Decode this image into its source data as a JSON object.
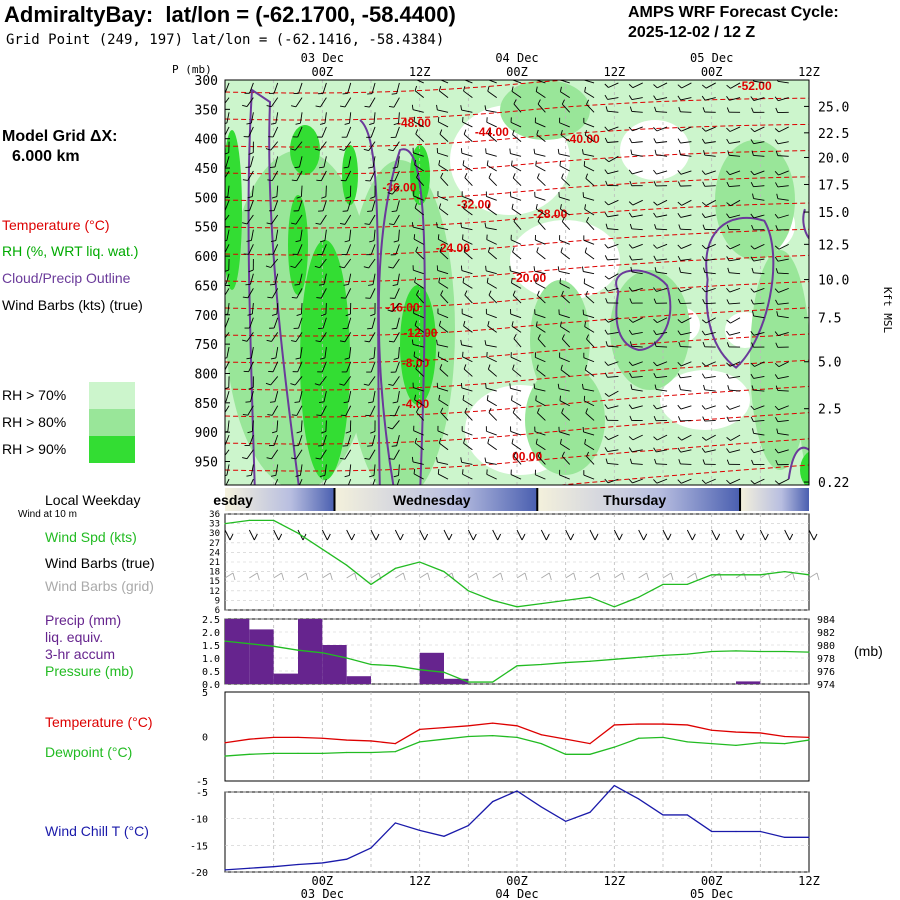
{
  "header": {
    "station": "AdmiraltyBay:",
    "latlon_label": "lat/lon = (-62.1700, -58.4400)",
    "grid_point": "Grid Point (249, 197) lat/lon = (-62.1416, -58.4384)",
    "cycle_title": "AMPS WRF Forecast Cycle:",
    "cycle_value": "2025-12-02 / 12  Z"
  },
  "sidebar": {
    "model_grid_label": "Model Grid ΔX:",
    "model_grid_value": "6.000 km",
    "legend_temperature": "Temperature (°C)",
    "legend_rh": "RH (%, WRT liq. wat.)",
    "legend_cloud": "Cloud/Precip Outline",
    "legend_wind": "Wind Barbs (kts) (true)",
    "rh70": "RH > 70%",
    "rh80": "RH > 80%",
    "rh90": "RH > 90%",
    "local_weekday": "Local Weekday",
    "wind_10m": "Wind at 10 m",
    "wind_spd": "Wind Spd (kts)",
    "wind_barbs_true": "Wind Barbs (true)",
    "wind_barbs_grid": "Wind Barbs (grid)",
    "precip_line1": "Precip (mm)",
    "precip_line2": "liq. equiv.",
    "precip_line3": "3-hr accum",
    "pressure_label": "Pressure (mb)",
    "temperature_label": "Temperature (°C)",
    "dewpoint_label": "Dewpoint (°C)",
    "windchill_label": "Wind Chill T (°C)"
  },
  "colors": {
    "temperature": "#dd0000",
    "rh_label": "#00aa00",
    "cloud": "#6a3a9a",
    "rh70": "#ccf5cc",
    "rh80": "#99e699",
    "rh90": "#33dd33",
    "wind_spd": "#22bb22",
    "precip": "#66248e",
    "pressure": "#22bb22",
    "dewpoint": "#22bb22",
    "windchill": "#1a1aaa",
    "grid_barbs": "#aaaaaa"
  },
  "chart_data": [
    {
      "type": "heatmap",
      "name": "Vertical cross-section",
      "y_label_left": "P (mb)",
      "y_label_right": "Kft MSL",
      "pressure_ticks": [
        300,
        350,
        400,
        450,
        500,
        550,
        600,
        650,
        700,
        750,
        800,
        850,
        900,
        950
      ],
      "height_ticks": [
        "25.0",
        "22.5",
        "20.0",
        "17.5",
        "15.0",
        "12.5",
        "10.0",
        "7.5",
        "5.0",
        "2.5",
        "0.22"
      ],
      "height_tick_pressures": [
        345,
        390,
        432,
        478,
        525,
        580,
        640,
        705,
        780,
        860,
        985
      ],
      "top_axis": [
        {
          "hours": 12,
          "time": "00Z",
          "date": "03 Dec"
        },
        {
          "hours": 24,
          "time": "12Z",
          "date": ""
        },
        {
          "hours": 36,
          "time": "00Z",
          "date": "04 Dec"
        },
        {
          "hours": 48,
          "time": "12Z",
          "date": ""
        },
        {
          "hours": 60,
          "time": "00Z",
          "date": "05 Dec"
        },
        {
          "hours": 72,
          "time": "12Z",
          "date": ""
        }
      ],
      "temperature_contours": [
        "-52.00",
        "-48.00",
        "-44.00",
        "-40.00",
        "-36.00",
        "-32.00",
        "-28.00",
        "-24.00",
        "-20.00",
        "-16.00",
        "-12.00",
        "-8.00",
        "-4.00",
        "00.00"
      ],
      "temperature_label_points": [
        {
          "label": "-52.00",
          "h": 63.2,
          "p": 317
        },
        {
          "label": "-48.00",
          "h": 21.2,
          "p": 380
        },
        {
          "label": "-44.00",
          "h": 30.8,
          "p": 395
        },
        {
          "label": "-40.00",
          "h": 42.0,
          "p": 407
        },
        {
          "label": "-36.00",
          "h": 19.4,
          "p": 490
        },
        {
          "label": "-32.00",
          "h": 28.6,
          "p": 519
        },
        {
          "label": "-28.00",
          "h": 38.0,
          "p": 535
        },
        {
          "label": "-24.00",
          "h": 26.0,
          "p": 593
        },
        {
          "label": "-20.00",
          "h": 35.4,
          "p": 644
        },
        {
          "label": "-16.00",
          "h": 19.8,
          "p": 694
        },
        {
          "label": "-12.00",
          "h": 22.0,
          "p": 738
        },
        {
          "label": "-8.00",
          "h": 21.8,
          "p": 789
        },
        {
          "label": "-4.00",
          "h": 21.8,
          "p": 859
        },
        {
          "label": "00.00",
          "h": 35.4,
          "p": 948
        }
      ]
    },
    {
      "type": "line",
      "name": "Wind speed",
      "y_ticks": [
        36,
        33,
        30,
        27,
        24,
        21,
        18,
        15,
        12,
        9,
        6
      ],
      "ylim": [
        6,
        36
      ],
      "x_hours": [
        0,
        3,
        6,
        9,
        12,
        15,
        18,
        21,
        24,
        27,
        30,
        33,
        36,
        39,
        42,
        45,
        48,
        51,
        54,
        57,
        60,
        63,
        66,
        69,
        72
      ],
      "values": [
        33,
        34,
        34,
        30,
        25,
        20,
        14,
        19,
        21,
        18,
        12,
        9,
        7,
        8,
        9,
        10,
        7,
        10,
        14,
        14,
        17,
        17,
        17,
        18,
        17
      ]
    },
    {
      "type": "bar",
      "name": "Precip 3-hr accum (mm)",
      "y_ticks": [
        "2.5",
        "2.0",
        "1.5",
        "1.0",
        "0.5",
        "0.0"
      ],
      "ylim": [
        0,
        2.5
      ],
      "bar_hours": [
        1.5,
        4.5,
        7.5,
        10.5,
        13.5,
        16.5,
        19.5,
        22.5,
        25.5,
        28.5,
        64.5
      ],
      "values": [
        2.5,
        2.1,
        0.4,
        2.5,
        1.5,
        0.3,
        0.0,
        0.0,
        1.2,
        0.2,
        0.1
      ]
    },
    {
      "type": "line",
      "name": "Pressure (mb)",
      "y_ticks": [
        984,
        982,
        980,
        978,
        976,
        974
      ],
      "ylim": [
        974,
        984
      ],
      "x_hours": [
        0,
        3,
        6,
        9,
        12,
        15,
        18,
        21,
        24,
        27,
        30,
        33,
        36,
        39,
        42,
        45,
        48,
        51,
        54,
        57,
        60,
        63,
        66,
        69,
        72
      ],
      "values": [
        980.6,
        980.2,
        979.8,
        979.2,
        978.8,
        978.0,
        977.0,
        976.8,
        976.2,
        975.8,
        974.3,
        974.3,
        976.8,
        977.0,
        977.3,
        977.5,
        977.8,
        978.1,
        978.4,
        978.6,
        979.0,
        979.1,
        979.0,
        979.0,
        978.9
      ]
    },
    {
      "type": "line",
      "name": "Temperature and Dewpoint (°C)",
      "y_ticks": [
        5,
        0,
        -5
      ],
      "ylim": [
        -5,
        5
      ],
      "x_hours": [
        0,
        3,
        6,
        9,
        12,
        15,
        18,
        21,
        24,
        27,
        30,
        33,
        36,
        39,
        42,
        45,
        48,
        51,
        54,
        57,
        60,
        63,
        66,
        69,
        72
      ],
      "series": [
        {
          "name": "Temperature",
          "values": [
            -0.7,
            -0.3,
            -0.1,
            -0.1,
            -0.2,
            -0.4,
            -0.5,
            -0.8,
            0.8,
            1.0,
            1.2,
            1.5,
            1.2,
            0.2,
            -0.3,
            -0.8,
            1.3,
            1.4,
            1.4,
            1.3,
            0.7,
            0.5,
            0.4,
            0.0,
            -0.1
          ]
        },
        {
          "name": "Dewpoint",
          "values": [
            -2.2,
            -2.0,
            -1.9,
            -1.9,
            -1.9,
            -1.8,
            -1.8,
            -1.7,
            -0.6,
            -0.3,
            0.0,
            0.1,
            -0.1,
            -0.8,
            -2.0,
            -2.0,
            -1.2,
            -0.2,
            -0.1,
            -0.6,
            -0.8,
            -1.0,
            -0.7,
            -0.8,
            -0.4
          ]
        }
      ]
    },
    {
      "type": "line",
      "name": "Wind Chill T (°C)",
      "y_ticks": [
        -5,
        -10,
        -15,
        -20
      ],
      "ylim": [
        -20,
        -5
      ],
      "x_hours": [
        0,
        3,
        6,
        9,
        12,
        15,
        18,
        21,
        24,
        27,
        30,
        33,
        36,
        39,
        42,
        45,
        48,
        51,
        54,
        57,
        60,
        63,
        66,
        69,
        72
      ],
      "values": [
        -19.6,
        -19.3,
        -19.0,
        -18.6,
        -18.3,
        -17.6,
        -15.5,
        -10.8,
        -12.2,
        -13.3,
        -11.3,
        -6.8,
        -4.8,
        -7.8,
        -10.5,
        -8.8,
        -3.8,
        -6.3,
        -9.3,
        -9.3,
        -12.4,
        -12.4,
        -12.4,
        -13.5,
        -13.5
      ]
    }
  ],
  "weekday_bar": {
    "days": [
      {
        "label": "esday",
        "center_hours": 1.0
      },
      {
        "label": "Wednesday",
        "center_hours": 25.5
      },
      {
        "label": "Thursday",
        "center_hours": 50.5
      }
    ],
    "divider_hours": [
      13.5,
      38.5,
      63.5
    ]
  },
  "bottom_axis": [
    {
      "hours": 12,
      "time": "00Z",
      "date": "03 Dec"
    },
    {
      "hours": 24,
      "time": "12Z",
      "date": ""
    },
    {
      "hours": 36,
      "time": "00Z",
      "date": "04 Dec"
    },
    {
      "hours": 48,
      "time": "12Z",
      "date": ""
    },
    {
      "hours": 60,
      "time": "00Z",
      "date": "05 Dec"
    },
    {
      "hours": 72,
      "time": "12Z",
      "date": ""
    }
  ],
  "pressure_unit": "(mb)"
}
